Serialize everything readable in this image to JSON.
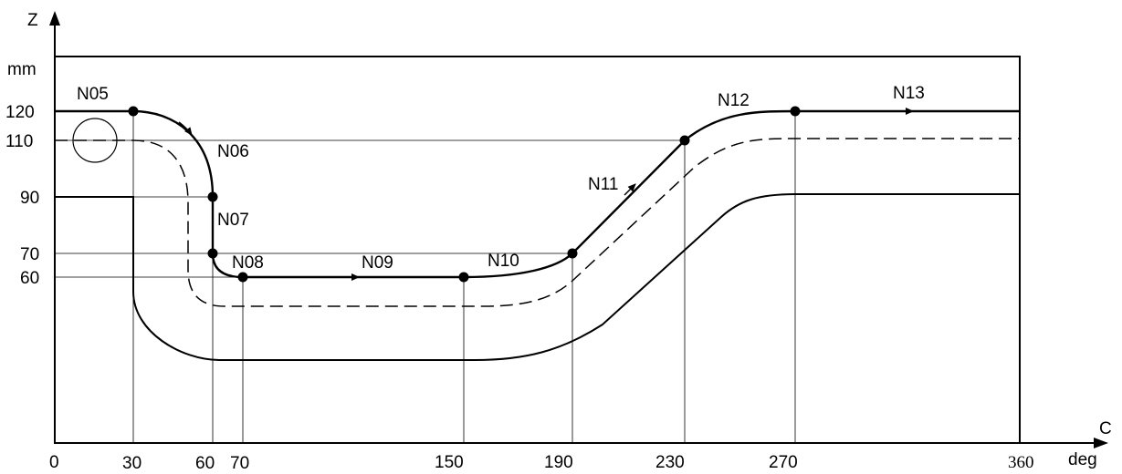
{
  "axes": {
    "y_label": "Z",
    "y_unit": "mm",
    "x_label": "C",
    "x_unit": "deg"
  },
  "x_ticks": [
    "0",
    "30",
    "60",
    "70",
    "150",
    "190",
    "230",
    "270",
    "360"
  ],
  "y_ticks": [
    "120",
    "110",
    "90",
    "70",
    "60"
  ],
  "blocks": [
    "N05",
    "N06",
    "N07",
    "N08",
    "N09",
    "N10",
    "N11",
    "N12",
    "N13"
  ]
}
